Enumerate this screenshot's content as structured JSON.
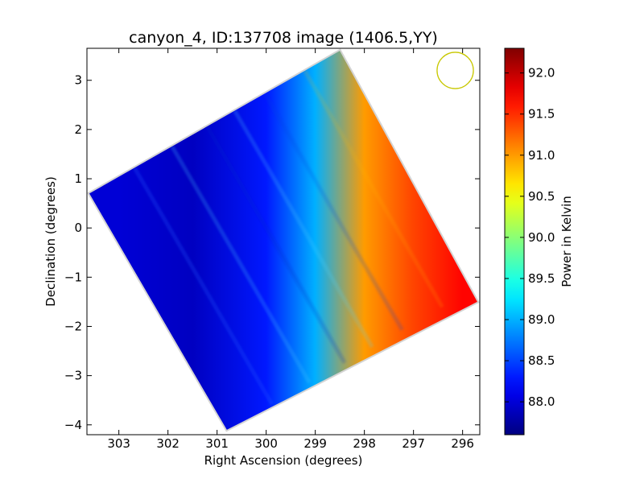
{
  "chart_data": {
    "type": "heatmap",
    "title": "canyon_4, ID:137708 image (1406.5,YY)",
    "xlabel": "Right Ascension (degrees)",
    "ylabel": "Declination (degrees)",
    "x_ticks": [
      303,
      302,
      301,
      300,
      299,
      298,
      297,
      296
    ],
    "x_tick_labels": [
      "303",
      "302",
      "301",
      "300",
      "299",
      "298",
      "297",
      "296"
    ],
    "xlim": [
      303.65,
      295.65
    ],
    "y_ticks": [
      3,
      2,
      1,
      0,
      -1,
      -2,
      -3,
      -4
    ],
    "y_tick_labels": [
      "3",
      "2",
      "1",
      "0",
      "−1",
      "−2",
      "−3",
      "−4"
    ],
    "ylim": [
      -4.2,
      3.65
    ],
    "colorbar": {
      "label": "Power in Kelvin",
      "range": [
        87.6,
        92.3
      ],
      "ticks": [
        88.0,
        88.5,
        89.0,
        89.5,
        90.0,
        90.5,
        91.0,
        91.5,
        92.0
      ],
      "tick_labels": [
        "88.0",
        "88.5",
        "89.0",
        "89.5",
        "90.0",
        "90.5",
        "91.0",
        "91.5",
        "92.0"
      ],
      "colormap": "jet"
    },
    "image_region": {
      "shape": "rotated square",
      "corners_ra_dec": [
        [
          303.6,
          0.7
        ],
        [
          298.5,
          3.6
        ],
        [
          295.7,
          -1.5
        ],
        [
          300.8,
          -4.1
        ]
      ]
    },
    "beam_marker": {
      "shape": "circle",
      "ra": 296.15,
      "dec": 3.2,
      "radius_deg": 0.37,
      "color": "#c8c800"
    },
    "value_gradient": {
      "direction": "increasing toward lower Right Ascension (image right)",
      "approx_values_along_ra": [
        [
          303.0,
          88.0
        ],
        [
          301.5,
          87.9
        ],
        [
          300.0,
          88.3
        ],
        [
          299.0,
          89.0
        ],
        [
          298.0,
          91.0
        ],
        [
          297.0,
          91.4
        ],
        [
          296.0,
          91.7
        ]
      ]
    }
  }
}
